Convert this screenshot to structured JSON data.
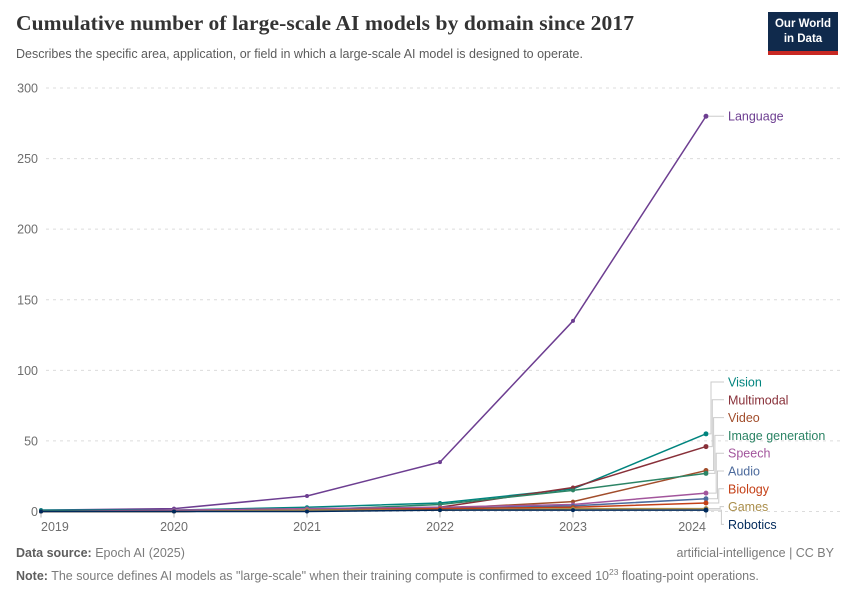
{
  "header": {
    "title": "Cumulative number of large-scale AI models by domain since 2017",
    "subtitle": "Describes the specific area, application, or field in which a large-scale AI model is designed to operate.",
    "logo": {
      "line1": "Our World",
      "line2": "in Data"
    }
  },
  "chart_data": {
    "type": "line",
    "title": "Cumulative number of large-scale AI models by domain since 2017",
    "x": [
      2019,
      2020,
      2021,
      2022,
      2023,
      2024
    ],
    "x_tick_labels": [
      "2019",
      "2020",
      "2021",
      "2022",
      "2023",
      "2024"
    ],
    "y_ticks": [
      0,
      50,
      100,
      150,
      200,
      250,
      300
    ],
    "ylim": [
      0,
      300
    ],
    "xlabel": "",
    "ylabel": "",
    "grid": "horizontal-dashed",
    "legend_position": "right-edge-labels",
    "series": [
      {
        "name": "Language",
        "color": "#6D3E91",
        "values": [
          1,
          2,
          11,
          35,
          135,
          280
        ]
      },
      {
        "name": "Vision",
        "color": "#00847E",
        "values": [
          1,
          1,
          3,
          6,
          16,
          55
        ]
      },
      {
        "name": "Multimodal",
        "color": "#883039",
        "values": [
          0,
          0,
          1,
          3,
          17,
          46
        ]
      },
      {
        "name": "Video",
        "color": "#A14D2B",
        "values": [
          0,
          0,
          1,
          2,
          7,
          29
        ]
      },
      {
        "name": "Image generation",
        "color": "#2C8465",
        "values": [
          0,
          0,
          1,
          5,
          15,
          27
        ]
      },
      {
        "name": "Speech",
        "color": "#A2559C",
        "values": [
          0,
          1,
          2,
          3,
          5,
          13
        ]
      },
      {
        "name": "Audio",
        "color": "#4C6A9C",
        "values": [
          0,
          0,
          1,
          2,
          4,
          9
        ]
      },
      {
        "name": "Biology",
        "color": "#C44017",
        "values": [
          0,
          0,
          1,
          2,
          3,
          6
        ]
      },
      {
        "name": "Games",
        "color": "#AA8E4B",
        "values": [
          0,
          0,
          1,
          1,
          2,
          2
        ]
      },
      {
        "name": "Robotics",
        "color": "#00295B",
        "values": [
          0,
          0,
          0,
          1,
          1,
          1
        ]
      }
    ]
  },
  "footer": {
    "data_source_label": "Data source:",
    "data_source_value": "Epoch AI (2025)",
    "credit": "artificial-intelligence | CC BY",
    "note_label": "Note:",
    "note_pre": "The source defines AI models as \"large-scale\" when their training compute is confirmed to exceed 10",
    "note_sup": "23",
    "note_post": " floating-point operations."
  }
}
